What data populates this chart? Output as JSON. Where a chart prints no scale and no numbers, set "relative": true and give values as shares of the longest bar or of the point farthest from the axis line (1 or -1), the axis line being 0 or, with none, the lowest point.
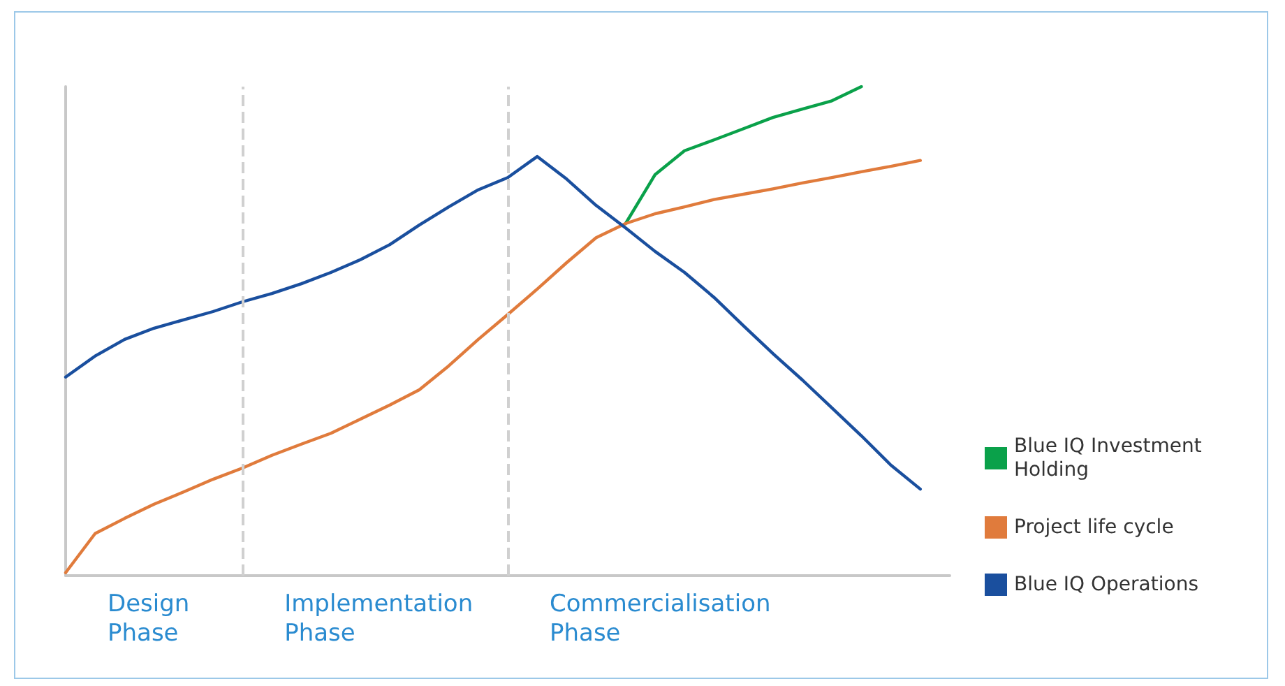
{
  "chart_data": {
    "type": "line",
    "relative": true,
    "legend": "right",
    "marker": "none",
    "line_style": "solid",
    "categories": [
      null,
      null,
      null,
      null,
      null,
      null,
      null,
      null,
      null,
      null,
      null,
      null,
      null,
      null,
      null,
      null,
      null,
      null,
      null,
      null,
      null,
      null,
      null,
      null,
      null,
      null,
      null,
      null,
      null,
      null,
      null
    ],
    "series": [
      {
        "name": "Blue IQ Investment Holding",
        "color": "#0aa14a",
        "values": [
          null,
          null,
          null,
          null,
          null,
          null,
          null,
          null,
          null,
          null,
          null,
          null,
          null,
          null,
          null,
          null,
          null,
          null,
          null,
          0.72,
          0.82,
          0.869,
          0.891,
          0.914,
          0.937,
          0.954,
          0.971,
          1.0,
          null,
          null,
          null
        ]
      },
      {
        "name": "Project life cycle",
        "color": "#e07b3c",
        "values": [
          0.006,
          0.086,
          0.117,
          0.146,
          0.171,
          0.197,
          0.22,
          0.246,
          0.269,
          0.291,
          0.32,
          0.349,
          0.38,
          0.429,
          0.483,
          0.534,
          0.586,
          0.64,
          0.691,
          0.72,
          0.74,
          0.754,
          0.769,
          0.78,
          0.791,
          0.803,
          0.814,
          0.826,
          0.837,
          0.849,
          null
        ]
      },
      {
        "name": "Blue IQ Operations",
        "color": "#1a4f9e",
        "values": [
          0.406,
          0.449,
          0.483,
          0.506,
          0.523,
          0.54,
          0.56,
          0.577,
          0.597,
          0.62,
          0.646,
          0.677,
          0.717,
          0.754,
          0.789,
          0.814,
          0.857,
          0.811,
          0.757,
          0.711,
          0.663,
          0.62,
          0.569,
          0.511,
          0.454,
          0.4,
          0.343,
          0.286,
          0.226,
          0.177,
          null
        ]
      }
    ],
    "annotations": [
      "Design Phase",
      "Implementation Phase",
      "Commercialisation Phase"
    ]
  }
}
